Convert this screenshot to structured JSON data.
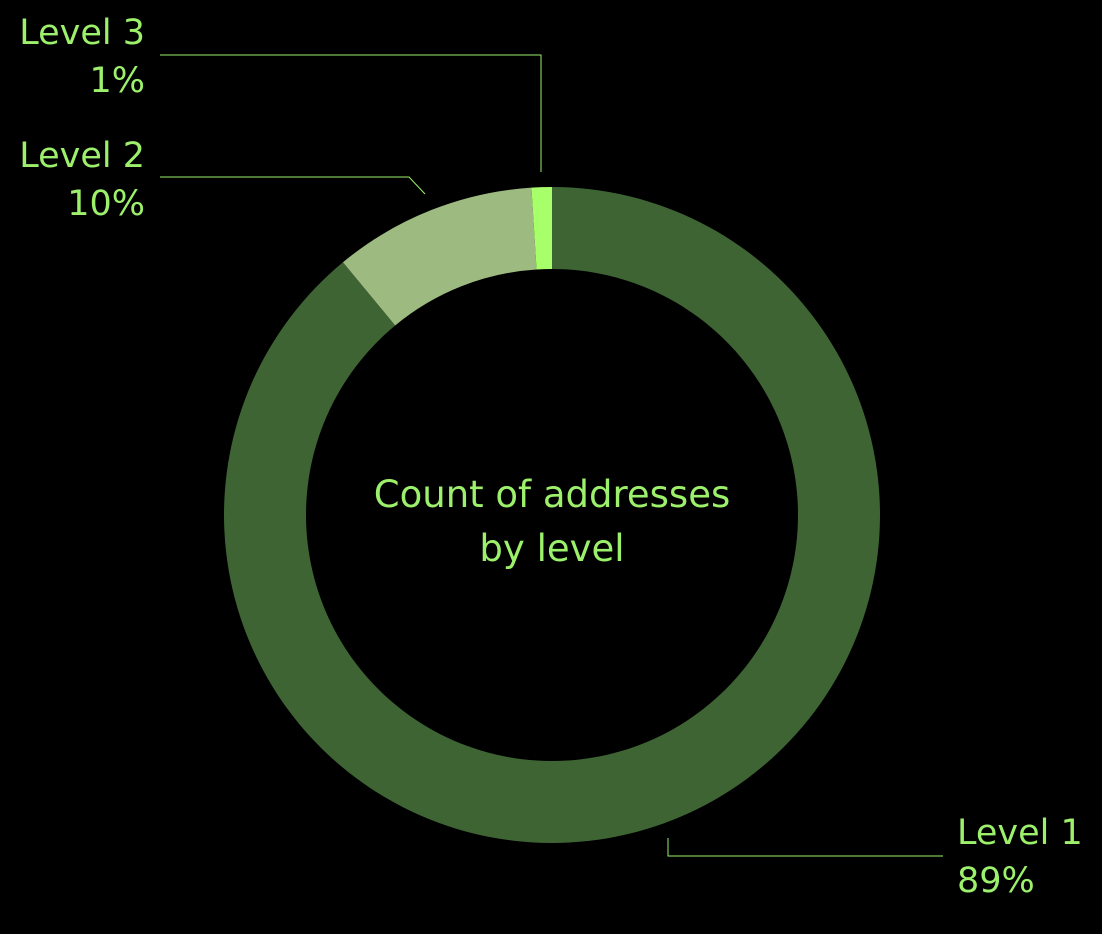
{
  "chart_data": {
    "type": "pie",
    "title": "Count of addresses by level",
    "title_lines": [
      "Count of addresses",
      "by level"
    ],
    "categories": [
      "Level 1",
      "Level 2",
      "Level 3"
    ],
    "values": [
      89,
      10,
      1
    ],
    "value_labels": [
      "89%",
      "10%",
      "1%"
    ],
    "unit": "%",
    "colors": [
      "#3e6434",
      "#9dba80",
      "#a7ff6a"
    ],
    "label_color": "#9cf06b",
    "background": "#000000",
    "legend": "none"
  }
}
